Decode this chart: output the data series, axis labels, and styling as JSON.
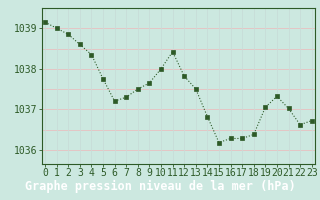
{
  "x": [
    0,
    1,
    2,
    3,
    4,
    5,
    6,
    7,
    8,
    9,
    10,
    11,
    12,
    13,
    14,
    15,
    16,
    17,
    18,
    19,
    20,
    21,
    22,
    23
  ],
  "y": [
    1039.15,
    1039.0,
    1038.85,
    1038.6,
    1038.35,
    1037.75,
    1037.2,
    1037.3,
    1037.5,
    1037.65,
    1038.0,
    1038.42,
    1037.82,
    1037.5,
    1036.82,
    1036.18,
    1036.28,
    1036.28,
    1036.38,
    1037.05,
    1037.32,
    1037.02,
    1036.62,
    1036.72
  ],
  "line_color": "#2d5a27",
  "marker_color": "#2d5a27",
  "bg_color": "#cce8e0",
  "grid_color_h": "#e8c0c0",
  "grid_color_v": "#c8ddd8",
  "plot_bg": "#cce8e0",
  "title": "Graphe pression niveau de la mer (hPa)",
  "title_bg": "#3a6b35",
  "title_color": "#ffffff",
  "axis_color": "#2d5a27",
  "ylabel_ticks": [
    1036,
    1037,
    1038,
    1039
  ],
  "xlim": [
    -0.3,
    23.3
  ],
  "ylim": [
    1035.65,
    1039.5
  ],
  "title_fontsize": 8.5,
  "tick_fontsize": 7
}
